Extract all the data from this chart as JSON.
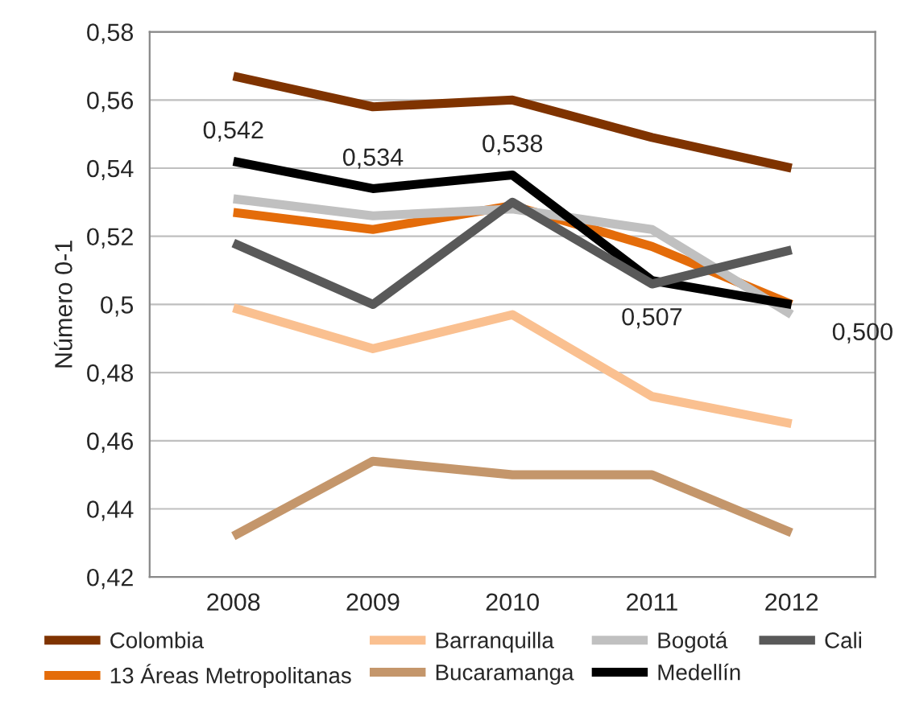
{
  "chart_data": {
    "type": "line",
    "ylabel": "Número 0-1",
    "categories": [
      "2008",
      "2009",
      "2010",
      "2011",
      "2012"
    ],
    "ylim": [
      0.42,
      0.58
    ],
    "yticks": [
      {
        "value": 0.42,
        "label": "0,42"
      },
      {
        "value": 0.44,
        "label": "0,44"
      },
      {
        "value": 0.46,
        "label": "0,46"
      },
      {
        "value": 0.48,
        "label": "0,48"
      },
      {
        "value": 0.5,
        "label": "0,5"
      },
      {
        "value": 0.52,
        "label": "0,52"
      },
      {
        "value": 0.54,
        "label": "0,54"
      },
      {
        "value": 0.56,
        "label": "0,56"
      },
      {
        "value": 0.58,
        "label": "0,58"
      }
    ],
    "grid": "y",
    "legend": "bottom",
    "marker": "none",
    "line_style": "solid",
    "series": [
      {
        "name": "Colombia",
        "color": "#7f3300",
        "values": [
          0.567,
          0.558,
          0.56,
          0.549,
          0.54
        ]
      },
      {
        "name": "13 Áreas Metropolitanas",
        "color": "#e46c0a",
        "values": [
          0.527,
          0.522,
          0.529,
          0.517,
          0.5
        ]
      },
      {
        "name": "Barranquilla",
        "color": "#fac090",
        "values": [
          0.499,
          0.487,
          0.497,
          0.473,
          0.465
        ]
      },
      {
        "name": "Bucaramanga",
        "color": "#c4966b",
        "values": [
          0.432,
          0.454,
          0.45,
          0.45,
          0.433
        ]
      },
      {
        "name": "Bogotá",
        "color": "#c0c0c0",
        "values": [
          0.531,
          0.526,
          0.528,
          0.522,
          0.497
        ]
      },
      {
        "name": "Medellín",
        "color": "#000000",
        "values": [
          0.542,
          0.534,
          0.538,
          0.507,
          0.5
        ],
        "value_labels": [
          "0,542",
          "0,534",
          "0,538",
          "0,507",
          "0,500"
        ]
      },
      {
        "name": "Cali",
        "color": "#595959",
        "values": [
          0.518,
          0.5,
          0.53,
          0.506,
          0.516
        ]
      }
    ]
  }
}
